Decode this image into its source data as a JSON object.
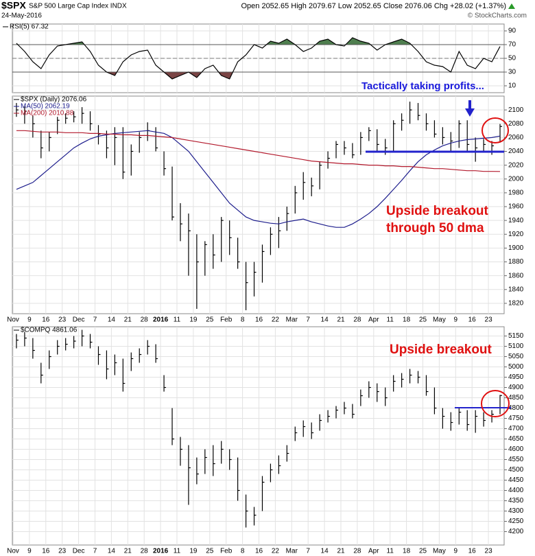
{
  "header": {
    "symbol": "$SPX",
    "description": "S&P 500 Large Cap Index INDX",
    "date": "24-May-2016",
    "quote": "Open 2052.65 High 2079.67 Low 2052.65 Close 2076.06 Chg +28.02 (+1.37%)",
    "credit": "© StockCharts.com"
  },
  "chart_data": [
    {
      "type": "line",
      "series": [
        {
          "name": "RSI(5) 67.32",
          "color": "#000000",
          "values": [
            72,
            60,
            45,
            35,
            55,
            68,
            70,
            72,
            74,
            60,
            40,
            30,
            25,
            45,
            55,
            60,
            62,
            40,
            30,
            20,
            25,
            30,
            22,
            35,
            40,
            25,
            20,
            45,
            55,
            70,
            65,
            75,
            72,
            78,
            70,
            60,
            65,
            75,
            78,
            70,
            68,
            80,
            75,
            72,
            62,
            70,
            74,
            78,
            72,
            60,
            45,
            40,
            38,
            30,
            60,
            40,
            35,
            50,
            45,
            67.32
          ]
        }
      ],
      "ylim": [
        0,
        100
      ],
      "yticks": [
        10,
        30,
        50,
        70,
        90
      ],
      "grid": true,
      "overbought": 70,
      "oversold": 30,
      "overbought_color": "#4f7f4f",
      "oversold_color": "#7a4444"
    },
    {
      "type": "ohlc",
      "categories": [
        "Nov",
        null,
        "9",
        null,
        "16",
        null,
        "23",
        null,
        "Dec",
        null,
        "7",
        null,
        "14",
        null,
        "21",
        null,
        "28",
        null,
        "2016",
        null,
        "11",
        null,
        "19",
        null,
        "25",
        null,
        "Feb",
        null,
        "8",
        null,
        "16",
        null,
        "22",
        null,
        "Mar",
        null,
        "7",
        null,
        "14",
        null,
        "21",
        null,
        "28",
        null,
        "Apr",
        null,
        "11",
        null,
        "18",
        null,
        "25",
        null,
        "May",
        null,
        "9",
        null,
        "16",
        null,
        "23",
        null
      ],
      "series": [
        {
          "name": "$SPX (Daily) 2076.06",
          "color": "#000000",
          "high": [
            2110,
            2105,
            2092,
            2070,
            2068,
            2090,
            2095,
            2098,
            2104,
            2098,
            2078,
            2070,
            2075,
            2075,
            2050,
            2068,
            2082,
            2075,
            2040,
            2018,
            1965,
            1950,
            1920,
            1910,
            1920,
            1945,
            1940,
            1915,
            1880,
            1880,
            1905,
            1930,
            1945,
            1960,
            1990,
            2010,
            2002,
            2025,
            2040,
            2055,
            2055,
            2052,
            2068,
            2075,
            2072,
            2058,
            2085,
            2095,
            2112,
            2110,
            2095,
            2085,
            2075,
            2068,
            2085,
            2085,
            2060,
            2058,
            2055,
            2079.67
          ],
          "low": [
            2090,
            2080,
            2060,
            2030,
            2040,
            2065,
            2080,
            2082,
            2080,
            2070,
            2050,
            2030,
            2020,
            2000,
            2005,
            2038,
            2055,
            2040,
            2005,
            1940,
            1910,
            1860,
            1812,
            1860,
            1870,
            1880,
            1890,
            1870,
            1810,
            1830,
            1850,
            1890,
            1900,
            1925,
            1950,
            1970,
            1975,
            1985,
            2015,
            2030,
            2035,
            2030,
            2035,
            2055,
            2040,
            2035,
            2040,
            2070,
            2080,
            2085,
            2070,
            2060,
            2050,
            2040,
            2045,
            2040,
            2025,
            2038,
            2035,
            2052.65
          ],
          "close": [
            2100,
            2098,
            2080,
            2045,
            2060,
            2085,
            2088,
            2090,
            2095,
            2080,
            2065,
            2045,
            2060,
            2010,
            2040,
            2060,
            2070,
            2045,
            2015,
            1945,
            1935,
            1925,
            1880,
            1905,
            1890,
            1940,
            1915,
            1880,
            1850,
            1865,
            1895,
            1920,
            1925,
            1950,
            1980,
            1995,
            1990,
            2020,
            2030,
            2050,
            2045,
            2035,
            2060,
            2070,
            2050,
            2045,
            2080,
            2085,
            2100,
            2092,
            2080,
            2065,
            2060,
            2055,
            2080,
            2050,
            2045,
            2050,
            2048,
            2076.06
          ]
        },
        {
          "name": "MA(50) 2062.19",
          "color": "#1c1c8c",
          "values": [
            1985,
            1990,
            1995,
            2005,
            2015,
            2025,
            2035,
            2045,
            2052,
            2058,
            2062,
            2064,
            2066,
            2067,
            2068,
            2069,
            2070,
            2068,
            2066,
            2060,
            2050,
            2040,
            2025,
            2010,
            1995,
            1980,
            1965,
            1955,
            1945,
            1940,
            1938,
            1936,
            1935,
            1938,
            1940,
            1942,
            1938,
            1935,
            1932,
            1930,
            1930,
            1935,
            1942,
            1950,
            1960,
            1972,
            1985,
            1998,
            2012,
            2025,
            2035,
            2042,
            2048,
            2052,
            2055,
            2057,
            2058,
            2059,
            2060,
            2062.19
          ]
        },
        {
          "name": "MA(200) 2010.88",
          "color": "#b2182b",
          "values": [
            2070,
            2070,
            2069,
            2068,
            2068,
            2068,
            2067,
            2067,
            2067,
            2066,
            2066,
            2065,
            2065,
            2064,
            2064,
            2063,
            2063,
            2062,
            2061,
            2060,
            2058,
            2056,
            2054,
            2052,
            2050,
            2048,
            2046,
            2044,
            2042,
            2040,
            2038,
            2036,
            2034,
            2032,
            2030,
            2028,
            2026,
            2025,
            2024,
            2023,
            2022,
            2022,
            2021,
            2020,
            2020,
            2019,
            2019,
            2018,
            2018,
            2017,
            2016,
            2015,
            2015,
            2014,
            2013,
            2012,
            2012,
            2011,
            2011,
            2010.88
          ]
        }
      ],
      "ylim": [
        1805,
        2120
      ],
      "yticks": [
        1820,
        1840,
        1860,
        1880,
        1900,
        1920,
        1940,
        1960,
        1980,
        2000,
        2020,
        2040,
        2060,
        2080,
        2100
      ],
      "grid": true,
      "annotations": [
        "Tactically taking profits...",
        "Upside breakout",
        "through 50 dma"
      ]
    },
    {
      "type": "ohlc",
      "categories": [
        "Nov",
        null,
        "9",
        null,
        "16",
        null,
        "23",
        null,
        "Dec",
        null,
        "7",
        null,
        "14",
        null,
        "21",
        null,
        "28",
        null,
        "2016",
        null,
        "11",
        null,
        "19",
        null,
        "25",
        null,
        "Feb",
        null,
        "8",
        null,
        "16",
        null,
        "22",
        null,
        "Mar",
        null,
        "7",
        null,
        "14",
        null,
        "21",
        null,
        "28",
        null,
        "Apr",
        null,
        "11",
        null,
        "18",
        null,
        "25",
        null,
        "May",
        null,
        "9",
        null,
        "16",
        null,
        "23",
        null
      ],
      "series": [
        {
          "name": "$COMPQ 4861.06",
          "color": "#000000",
          "high": [
            5160,
            5170,
            5140,
            5020,
            5080,
            5130,
            5140,
            5150,
            5180,
            5160,
            5100,
            5080,
            5060,
            5040,
            5070,
            5090,
            5130,
            5110,
            4960,
            4800,
            4660,
            4620,
            4560,
            4600,
            4620,
            4640,
            4600,
            4560,
            4380,
            4320,
            4470,
            4530,
            4570,
            4620,
            4710,
            4740,
            4730,
            4770,
            4790,
            4810,
            4830,
            4820,
            4890,
            4930,
            4920,
            4900,
            4960,
            4970,
            4990,
            4980,
            4960,
            4900,
            4800,
            4780,
            4800,
            4790,
            4790,
            4780,
            4790,
            4864
          ],
          "low": [
            5090,
            5100,
            5040,
            4920,
            4990,
            5060,
            5080,
            5090,
            5100,
            5090,
            5010,
            4940,
            4960,
            4880,
            4980,
            5020,
            5060,
            5020,
            4880,
            4620,
            4520,
            4330,
            4430,
            4480,
            4470,
            4530,
            4500,
            4350,
            4220,
            4230,
            4300,
            4440,
            4480,
            4540,
            4640,
            4660,
            4650,
            4690,
            4730,
            4750,
            4770,
            4750,
            4810,
            4850,
            4830,
            4810,
            4880,
            4900,
            4920,
            4920,
            4860,
            4770,
            4700,
            4690,
            4720,
            4690,
            4680,
            4710,
            4730,
            4770
          ],
          "close": [
            5130,
            5140,
            5080,
            4960,
            5050,
            5100,
            5110,
            5125,
            5150,
            5120,
            5060,
            4990,
            5020,
            4920,
            5040,
            5060,
            5100,
            5040,
            4900,
            4650,
            4600,
            4510,
            4480,
            4560,
            4530,
            4600,
            4550,
            4400,
            4300,
            4280,
            4440,
            4500,
            4520,
            4580,
            4680,
            4710,
            4680,
            4740,
            4760,
            4790,
            4800,
            4770,
            4860,
            4900,
            4880,
            4850,
            4930,
            4940,
            4960,
            4950,
            4880,
            4800,
            4760,
            4730,
            4780,
            4720,
            4760,
            4740,
            4770,
            4861.06
          ]
        }
      ],
      "ylim": [
        4135,
        5195
      ],
      "yticks": [
        4200,
        4250,
        4300,
        4350,
        4400,
        4450,
        4500,
        4550,
        4600,
        4650,
        4700,
        4750,
        4800,
        4850,
        4900,
        4950,
        5000,
        5050,
        5100,
        5150
      ],
      "grid": true,
      "annotations": [
        "Upside breakout"
      ]
    }
  ]
}
